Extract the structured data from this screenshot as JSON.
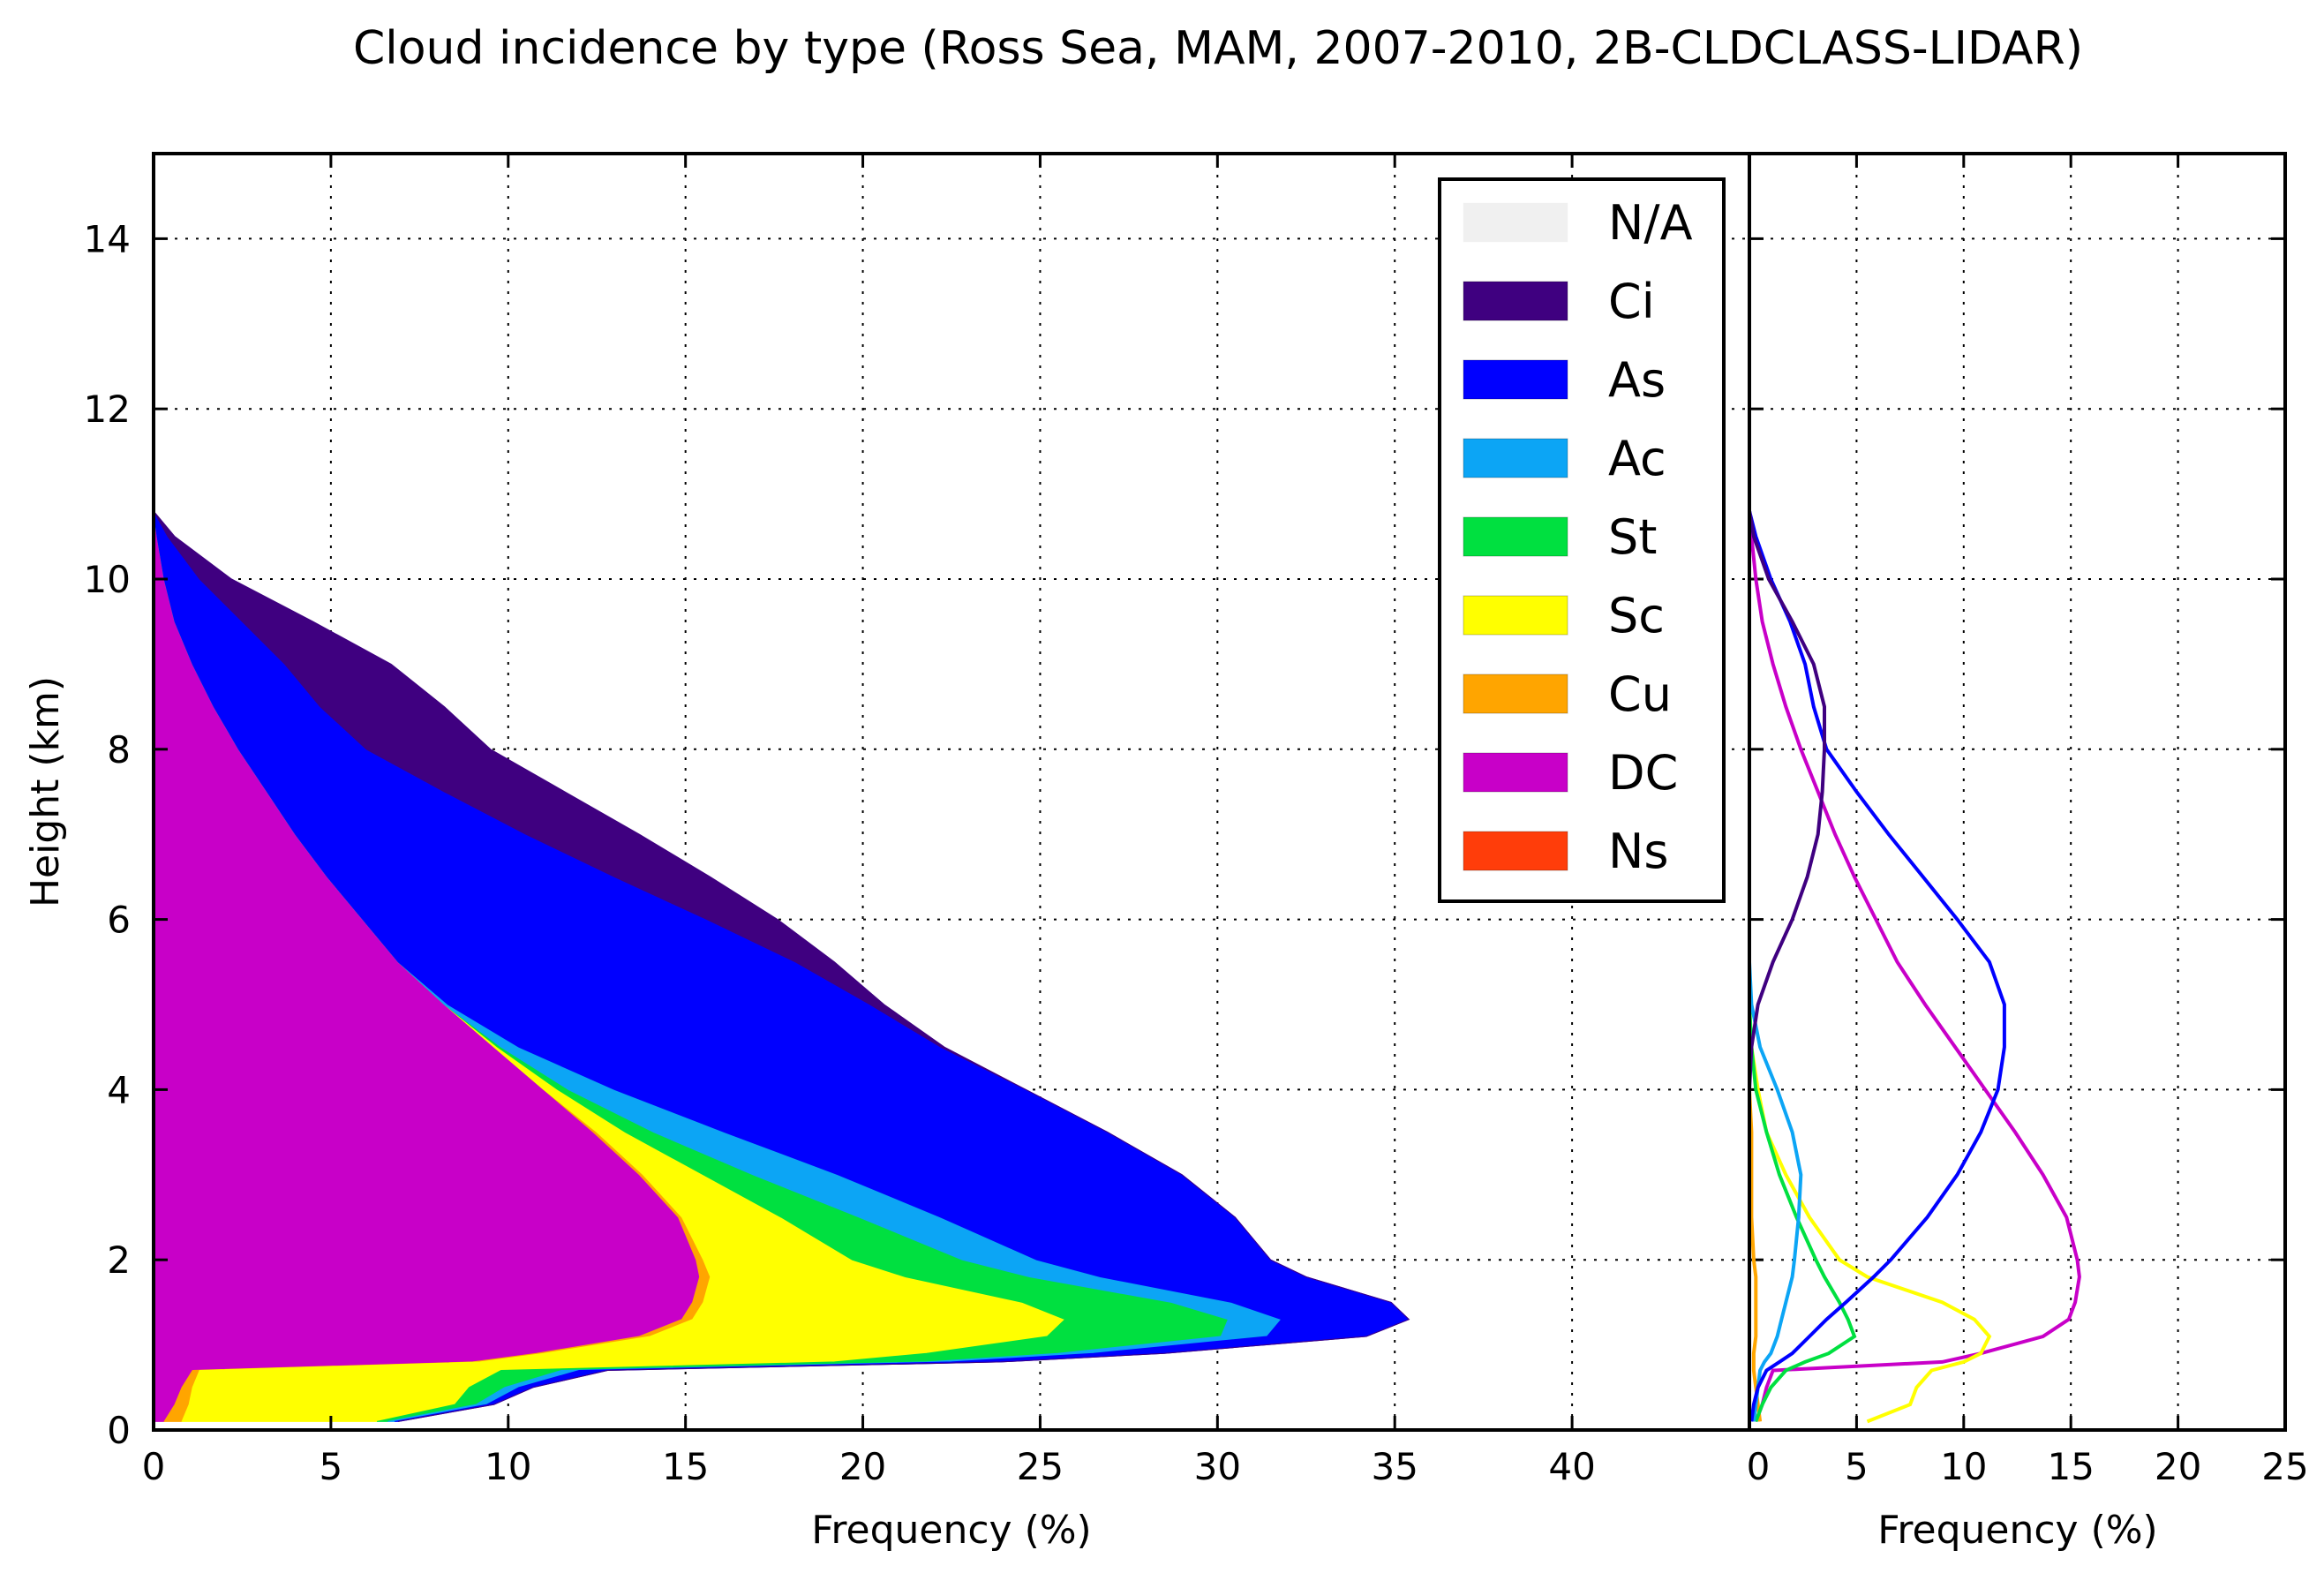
{
  "figure_title": "Cloud incidence by type (Ross Sea, MAM, 2007-2010, 2B-CLDCLASS-LIDAR)",
  "colors": {
    "N/A": "#f0f0f0",
    "Ci": "#3f0080",
    "As": "#0000ff",
    "Ac": "#0ca5f5",
    "St": "#00e040",
    "Sc": "#ffff00",
    "Cu": "#ffa500",
    "DC": "#c800c8",
    "Ns": "#ff3d0a"
  },
  "chart_data": [
    {
      "type": "area",
      "stacked": true,
      "orientation": "horizontal",
      "xlabel": "Frequency (%)",
      "ylabel": "Height (km)",
      "xlim": [
        0,
        45
      ],
      "ylim": [
        0,
        15
      ],
      "xticks": [
        "0",
        "5",
        "10",
        "15",
        "20",
        "25",
        "30",
        "35",
        "40"
      ],
      "yticks": [
        "0",
        "2",
        "4",
        "6",
        "8",
        "10",
        "12",
        "14"
      ],
      "grid": true,
      "legend": {
        "position": "top-right",
        "entries": [
          "N/A",
          "Ci",
          "As",
          "Ac",
          "St",
          "Sc",
          "Cu",
          "DC",
          "Ns"
        ]
      },
      "height_km": [
        0.1,
        0.3,
        0.5,
        0.7,
        0.8,
        0.9,
        1.1,
        1.3,
        1.5,
        1.8,
        2.0,
        2.5,
        3.0,
        3.5,
        4.0,
        4.5,
        5.0,
        5.5,
        6.0,
        6.5,
        7.0,
        7.5,
        8.0,
        8.5,
        9.0,
        9.5,
        10.0,
        10.5,
        10.8
      ],
      "series": [
        {
          "name": "DC",
          "values": [
            0.3,
            0.6,
            0.8,
            1.1,
            9.0,
            10.8,
            13.7,
            14.9,
            15.2,
            15.4,
            15.3,
            14.8,
            13.7,
            12.4,
            11.0,
            9.6,
            8.2,
            6.9,
            5.9,
            4.9,
            4.0,
            3.2,
            2.4,
            1.7,
            1.1,
            0.6,
            0.3,
            0.1,
            0.0
          ]
        },
        {
          "name": "Cu",
          "values": [
            0.5,
            0.4,
            0.3,
            0.2,
            0.2,
            0.2,
            0.3,
            0.3,
            0.3,
            0.3,
            0.2,
            0.1,
            0.1,
            0.1,
            0.0,
            0.0,
            0.0,
            0.0,
            0.0,
            0.0,
            0.0,
            0.0,
            0.0,
            0.0,
            0.0,
            0.0,
            0.0,
            0.0,
            0.0
          ]
        },
        {
          "name": "Sc",
          "values": [
            5.5,
            7.5,
            7.8,
            8.5,
            10.0,
            10.8,
            11.2,
            10.5,
            9.0,
            5.5,
            4.2,
            2.8,
            1.7,
            0.8,
            0.4,
            0.1,
            0.0,
            0.0,
            0.0,
            0.0,
            0.0,
            0.0,
            0.0,
            0.0,
            0.0,
            0.0,
            0.0,
            0.0,
            0.0
          ]
        },
        {
          "name": "St",
          "values": [
            0.3,
            0.6,
            1.0,
            1.7,
            2.6,
            3.7,
            4.9,
            4.6,
            4.2,
            3.5,
            3.1,
            2.2,
            1.4,
            0.8,
            0.3,
            0.1,
            0.0,
            0.0,
            0.0,
            0.0,
            0.0,
            0.0,
            0.0,
            0.0,
            0.0,
            0.0,
            0.0,
            0.0,
            0.0
          ]
        },
        {
          "name": "Ac",
          "values": [
            0.2,
            0.3,
            0.4,
            0.5,
            0.7,
            1.0,
            1.3,
            1.5,
            1.7,
            2.0,
            2.1,
            2.3,
            2.4,
            2.0,
            1.3,
            0.5,
            0.1,
            0.0,
            0.0,
            0.0,
            0.0,
            0.0,
            0.0,
            0.0,
            0.0,
            0.0,
            0.0,
            0.0,
            0.0
          ]
        },
        {
          "name": "As",
          "values": [
            0.1,
            0.2,
            0.4,
            0.8,
            1.4,
            2.0,
            2.8,
            3.6,
            4.5,
            5.8,
            6.6,
            8.3,
            9.7,
            10.8,
            11.6,
            11.9,
            11.9,
            11.2,
            9.7,
            8.1,
            6.5,
            5.0,
            3.6,
            3.0,
            2.6,
            1.9,
            1.0,
            0.3,
            0.0
          ]
        },
        {
          "name": "Ci",
          "values": [
            0.0,
            0.0,
            0.0,
            0.0,
            0.0,
            0.0,
            0.0,
            0.0,
            0.0,
            0.0,
            0.0,
            0.0,
            0.0,
            0.0,
            0.0,
            0.1,
            0.4,
            1.1,
            2.0,
            2.7,
            3.2,
            3.4,
            3.5,
            3.5,
            3.0,
            2.0,
            0.9,
            0.2,
            0.0
          ]
        }
      ]
    },
    {
      "type": "line",
      "orientation": "horizontal",
      "xlabel": "Frequency (%)",
      "ylabel": "",
      "xlim": [
        0,
        25
      ],
      "ylim": [
        0,
        15
      ],
      "xticks": [
        "0",
        "5",
        "10",
        "15",
        "20",
        "25"
      ],
      "grid": true,
      "note_series_share_individual_values_of_left_panel": true
    }
  ]
}
